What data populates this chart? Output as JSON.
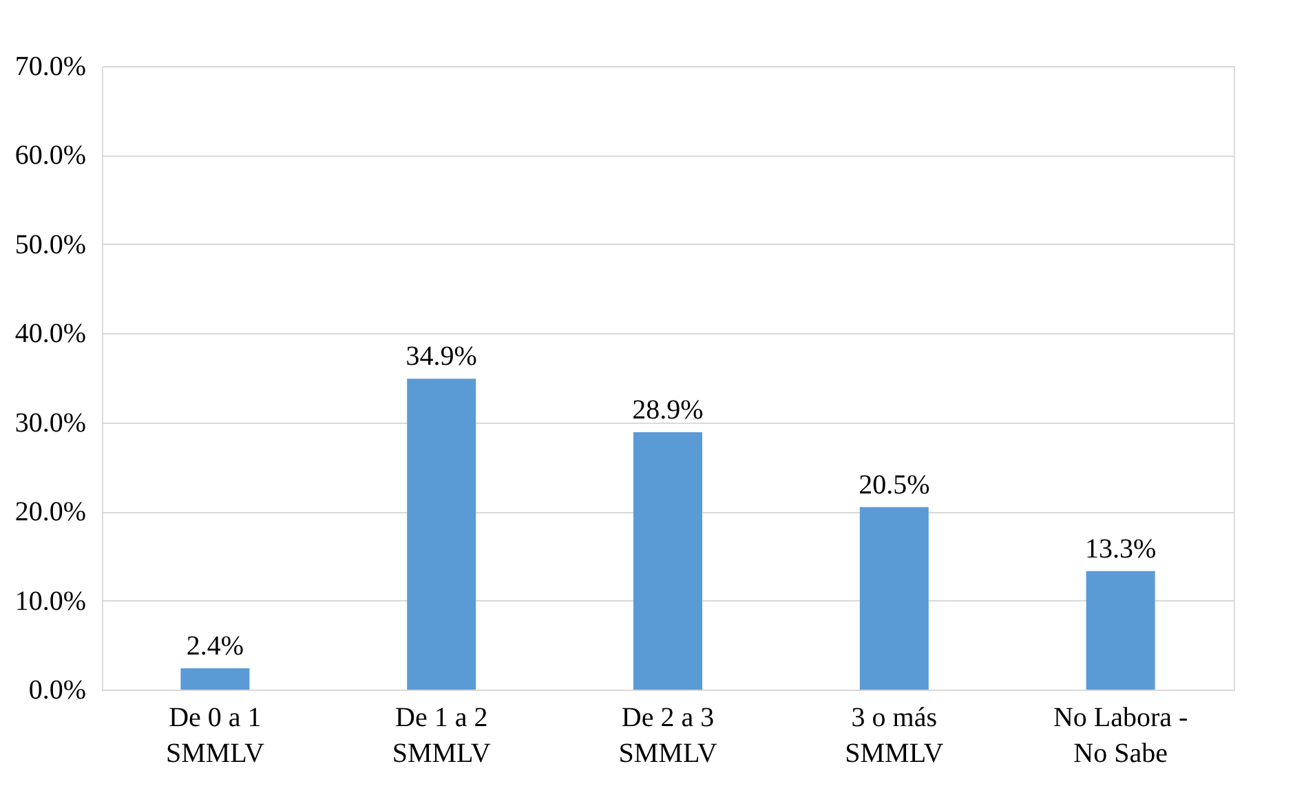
{
  "chart_data": {
    "type": "bar",
    "categories": [
      "De 0 a 1\nSMMLV",
      "De 1 a 2\nSMMLV",
      "De 2 a 3\nSMMLV",
      "3 o más\nSMMLV",
      "No Labora -\nNo Sabe"
    ],
    "values": [
      2.4,
      34.9,
      28.9,
      20.5,
      13.3
    ],
    "value_labels": [
      "2.4%",
      "34.9%",
      "28.9%",
      "20.5%",
      "13.3%"
    ],
    "color": "#5b9bd5",
    "ylim": [
      0,
      70
    ],
    "yticks": [
      {
        "value": 0,
        "label": "0.0%"
      },
      {
        "value": 10,
        "label": "10.0%"
      },
      {
        "value": 20,
        "label": "20.0%"
      },
      {
        "value": 30,
        "label": "30.0%"
      },
      {
        "value": 40,
        "label": "40.0%"
      },
      {
        "value": 50,
        "label": "50.0%"
      },
      {
        "value": 60,
        "label": "60.0%"
      },
      {
        "value": 70,
        "label": "70.0%"
      }
    ],
    "grid": "y",
    "legend": false
  }
}
